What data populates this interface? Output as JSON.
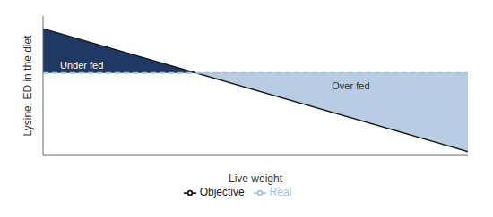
{
  "chart_data": {
    "type": "line",
    "x": [
      0,
      10
    ],
    "xlabel": "Live weight",
    "ylabel": "Lysine: ED in the diet",
    "xlim": [
      0,
      10
    ],
    "ylim": [
      0,
      11
    ],
    "tick_labels": false,
    "series": [
      {
        "name": "Objective",
        "color": "#1a1a1a",
        "line_style": "solid",
        "values": [
          10.0,
          0.3
        ]
      },
      {
        "name": "Real",
        "color": "#9dc3e6",
        "line_style": "dashed",
        "values": [
          6.5,
          6.5
        ]
      }
    ],
    "regions": [
      {
        "label": "Under fed",
        "color": "#1f3864",
        "label_color": "#ffffff",
        "label_x": 0.4,
        "label_y": 7.1
      },
      {
        "label": "Over fed",
        "color": "#b8cce4",
        "label_color": "#333333",
        "label_x": 6.8,
        "label_y": 5.5
      }
    ]
  }
}
